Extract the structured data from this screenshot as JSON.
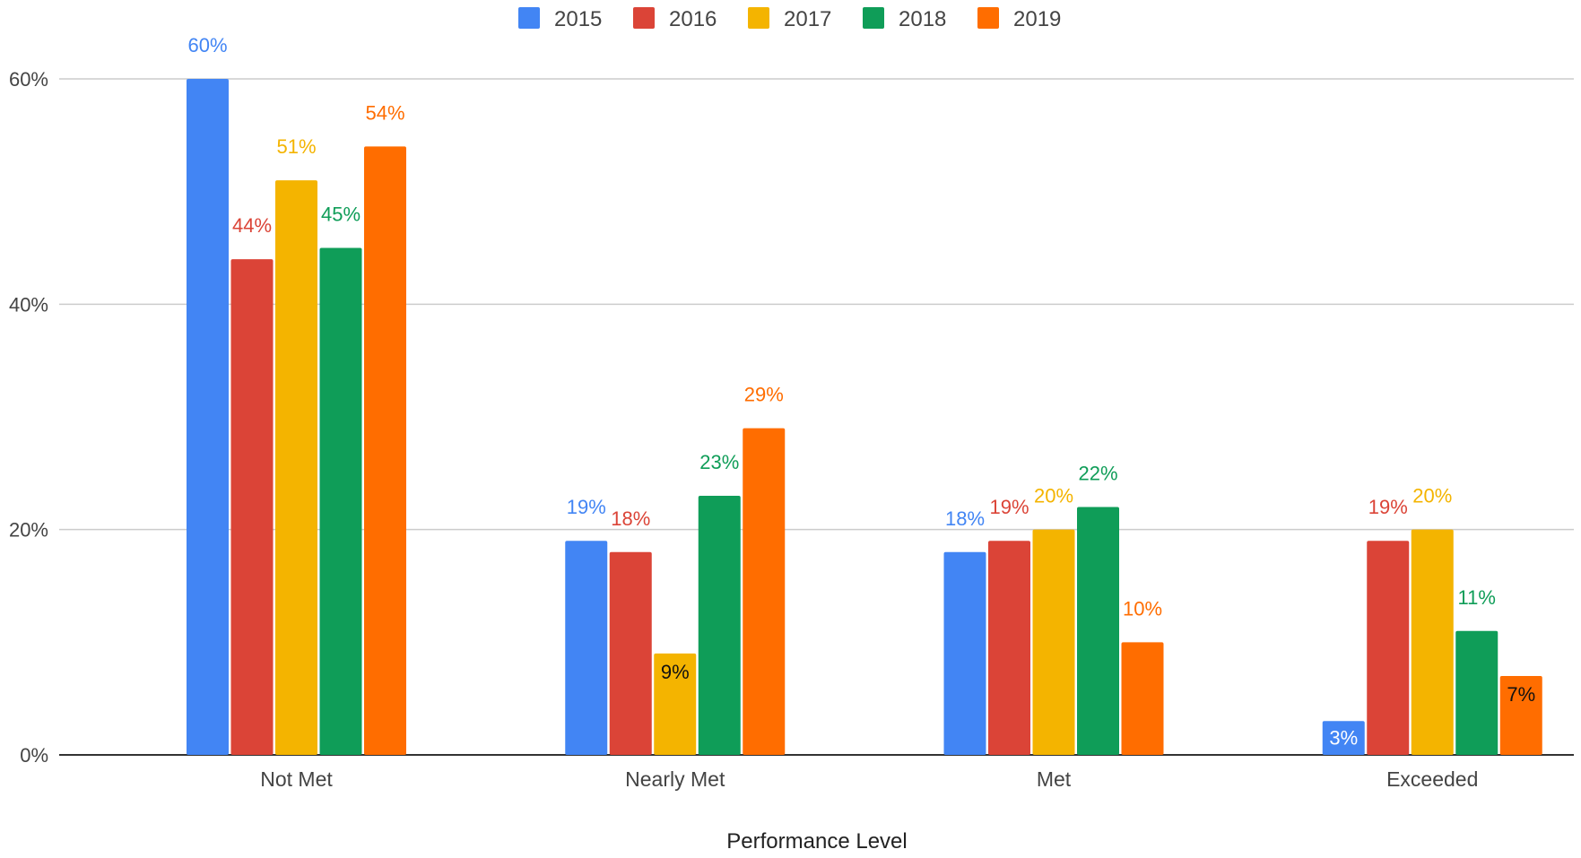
{
  "chart_data": {
    "type": "bar",
    "title": "",
    "xlabel": "Performance Level",
    "ylabel": "",
    "ylim": [
      0,
      0.6
    ],
    "yticks": [
      0,
      0.2,
      0.4,
      0.6
    ],
    "ytick_labels": [
      "0%",
      "20%",
      "40%",
      "60%"
    ],
    "grid": true,
    "legend_position": "top-center",
    "categories": [
      "Not Met",
      "Nearly Met",
      "Met",
      "Exceeded"
    ],
    "series": [
      {
        "name": "2015",
        "color": "#4285F4",
        "values": [
          0.6,
          0.19,
          0.18,
          0.03
        ],
        "labels": [
          "60%",
          "19%",
          "18%",
          "3%"
        ]
      },
      {
        "name": "2016",
        "color": "#DB4437",
        "values": [
          0.44,
          0.18,
          0.19,
          0.19
        ],
        "labels": [
          "44%",
          "18%",
          "19%",
          "19%"
        ]
      },
      {
        "name": "2017",
        "color": "#F4B400",
        "values": [
          0.51,
          0.09,
          0.2,
          0.2
        ],
        "labels": [
          "51%",
          "9%",
          "20%",
          "20%"
        ]
      },
      {
        "name": "2018",
        "color": "#0F9D58",
        "values": [
          0.45,
          0.23,
          0.22,
          0.11
        ],
        "labels": [
          "45%",
          "23%",
          "22%",
          "11%"
        ]
      },
      {
        "name": "2019",
        "color": "#FF6D00",
        "values": [
          0.54,
          0.29,
          0.1,
          0.07
        ],
        "labels": [
          "54%",
          "29%",
          "10%",
          "7%"
        ]
      }
    ]
  }
}
